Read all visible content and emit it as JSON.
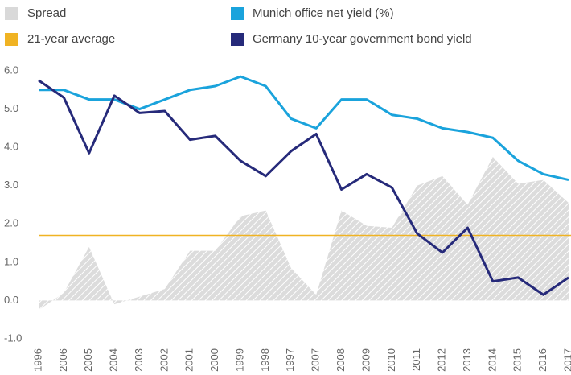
{
  "chart_data": {
    "type": "line",
    "categories": [
      "1996",
      "2006",
      "2005",
      "2004",
      "2003",
      "2002",
      "2001",
      "2000",
      "1999",
      "1998",
      "1997",
      "2007",
      "2008",
      "2009",
      "2010",
      "2011",
      "2012",
      "2013",
      "2014",
      "2015",
      "2016",
      "2017"
    ],
    "series": [
      {
        "name": "Spread",
        "color": "#d9d9d9",
        "kind": "area",
        "values": [
          -0.25,
          0.2,
          1.4,
          -0.1,
          0.1,
          0.3,
          1.3,
          1.3,
          2.2,
          2.35,
          0.85,
          0.15,
          2.35,
          1.95,
          1.9,
          3.0,
          3.25,
          2.5,
          3.75,
          3.05,
          3.15,
          2.55
        ]
      },
      {
        "name": "21-year average",
        "color": "#f0b323",
        "kind": "constant",
        "value": 1.7
      },
      {
        "name": "Munich office net yield (%)",
        "color": "#1aa3dc",
        "kind": "line",
        "values": [
          5.5,
          5.5,
          5.25,
          5.25,
          5.0,
          5.25,
          5.5,
          5.6,
          5.85,
          5.6,
          4.75,
          4.5,
          5.25,
          5.25,
          4.85,
          4.75,
          4.5,
          4.4,
          4.25,
          3.65,
          3.3,
          3.15
        ]
      },
      {
        "name": "Germany 10-year government bond yield",
        "color": "#262a7a",
        "kind": "line",
        "values": [
          5.75,
          5.3,
          3.85,
          5.35,
          4.9,
          4.95,
          4.2,
          4.3,
          3.65,
          3.25,
          3.9,
          4.35,
          2.9,
          3.3,
          2.95,
          1.75,
          1.25,
          1.9,
          0.5,
          0.6,
          0.15,
          0.6
        ]
      }
    ],
    "ylim": [
      -1,
      6
    ],
    "yticks": [
      {
        "value": 6,
        "label": "6.0"
      },
      {
        "value": 5,
        "label": "5.0"
      },
      {
        "value": 4,
        "label": "4.0"
      },
      {
        "value": 3,
        "label": "3.0"
      },
      {
        "value": 2,
        "label": "2.0"
      },
      {
        "value": 1,
        "label": "1.0"
      },
      {
        "value": 0,
        "label": "0.0"
      },
      {
        "value": -1,
        "label": "-1.0"
      }
    ],
    "grid": false
  }
}
